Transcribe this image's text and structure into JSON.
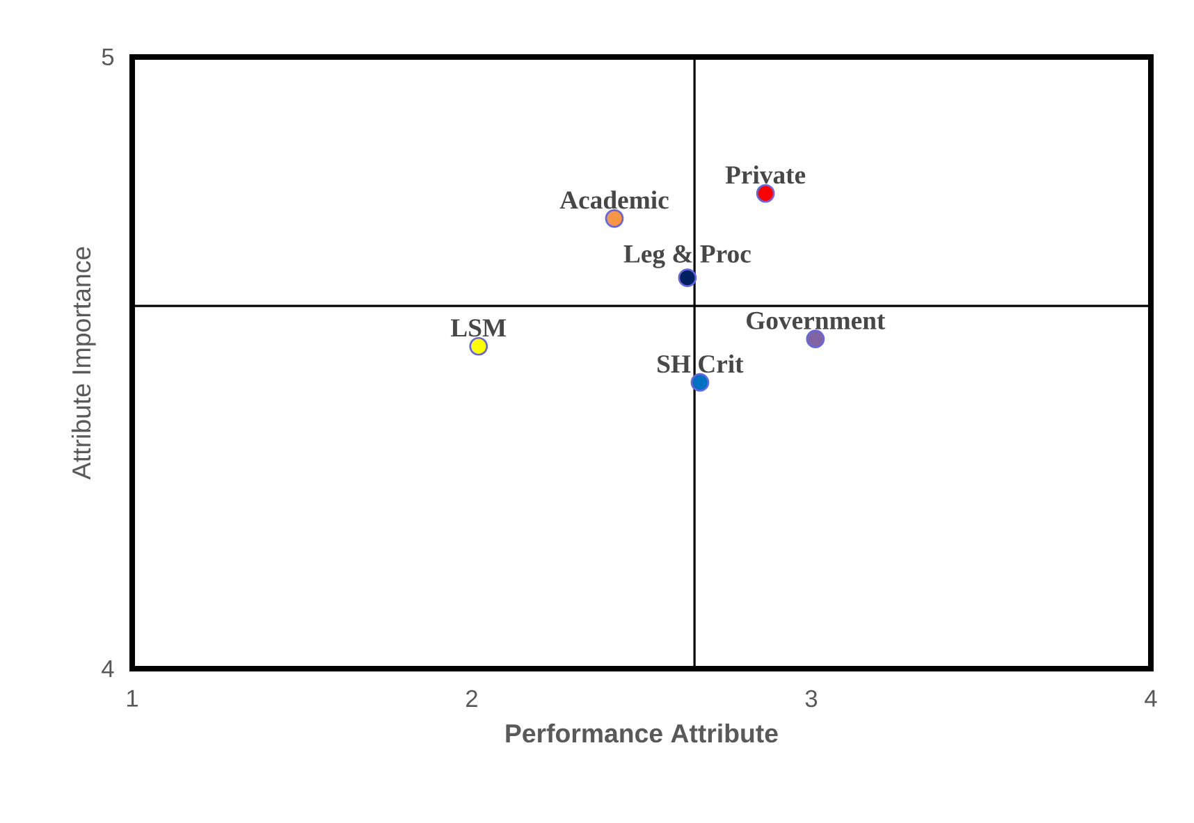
{
  "chart_data": {
    "type": "scatter",
    "xlabel": "Performance Attribute",
    "ylabel": "Attribute Importance",
    "xlim": [
      1,
      4
    ],
    "ylim": [
      4,
      5
    ],
    "xticks": [
      1,
      2,
      3,
      4
    ],
    "yticks": [
      4,
      5
    ],
    "grid": false,
    "ref_lines": [
      {
        "axis": "x",
        "value": 2.656,
        "color": "#000000"
      },
      {
        "axis": "y",
        "value": 4.593,
        "color": "#000000"
      }
    ],
    "series": [
      {
        "name": "Private",
        "color": "#ff0000",
        "x": [
          2.865
        ],
        "values": [
          4.777
        ]
      },
      {
        "name": "Academic",
        "color": "#f79646",
        "x": [
          2.42
        ],
        "values": [
          4.736
        ]
      },
      {
        "name": "Leg & Proc",
        "color": "#002060",
        "x": [
          2.635
        ],
        "values": [
          4.639
        ]
      },
      {
        "name": "Government",
        "color": "#8064a2",
        "x": [
          3.012
        ],
        "values": [
          4.539
        ]
      },
      {
        "name": "LSM",
        "color": "#ffff00",
        "x": [
          2.02
        ],
        "values": [
          4.527
        ]
      },
      {
        "name": "SH Crit",
        "color": "#0070c0",
        "x": [
          2.672
        ],
        "values": [
          4.468
        ]
      }
    ]
  }
}
